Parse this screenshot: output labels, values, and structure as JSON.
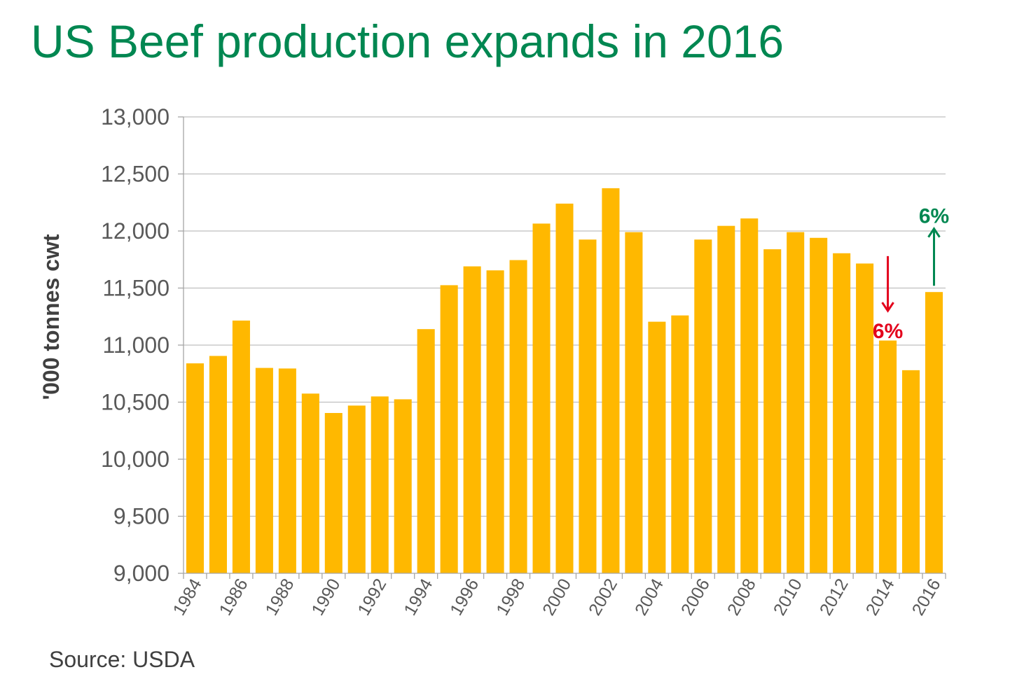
{
  "title": "US Beef production expands in 2016",
  "source": "Source: USDA",
  "colors": {
    "title": "#008751",
    "bar": "#FFB800",
    "grid": "#BFBFBF",
    "axis": "#A6A6A6",
    "tick_text": "#595959",
    "label_text": "#404040",
    "source_text": "#404040",
    "down_annotation": "#E3001B",
    "up_annotation": "#008751"
  },
  "chart_data": {
    "type": "bar",
    "ylabel": "'000 tonnes cwt",
    "ylim": [
      9000,
      13000
    ],
    "ytick_step": 500,
    "ytick_labels": [
      "9,000",
      "9,500",
      "10,000",
      "10,500",
      "11,000",
      "11,500",
      "12,000",
      "12,500",
      "13,000"
    ],
    "grid": true,
    "categories": [
      "1984",
      "1985",
      "1986",
      "1987",
      "1988",
      "1989",
      "1990",
      "1991",
      "1992",
      "1993",
      "1994",
      "1995",
      "1996",
      "1997",
      "1998",
      "1999",
      "2000",
      "2001",
      "2002",
      "2003",
      "2004",
      "2005",
      "2006",
      "2007",
      "2008",
      "2009",
      "2010",
      "2011",
      "2012",
      "2013",
      "2014",
      "2015",
      "2016"
    ],
    "x_tick_labels": [
      "1984",
      "",
      "1986",
      "",
      "1988",
      "",
      "1990",
      "",
      "1992",
      "",
      "1994",
      "",
      "1996",
      "",
      "1998",
      "",
      "2000",
      "",
      "2002",
      "",
      "2004",
      "",
      "2006",
      "",
      "2008",
      "",
      "2010",
      "",
      "2012",
      "",
      "2014",
      "",
      "2016"
    ],
    "values": [
      10840,
      10905,
      11215,
      10800,
      10795,
      10575,
      10405,
      10470,
      10550,
      10525,
      11140,
      11525,
      11690,
      11655,
      11745,
      12065,
      12240,
      11925,
      12375,
      11990,
      11205,
      11260,
      11925,
      12045,
      12110,
      11840,
      11990,
      11940,
      11805,
      11715,
      11040,
      10780,
      11465
    ],
    "annotations": [
      {
        "id": "down",
        "label": "6%",
        "direction": "down",
        "category": "2014"
      },
      {
        "id": "up",
        "label": "6%",
        "direction": "up",
        "category": "2016"
      }
    ]
  }
}
